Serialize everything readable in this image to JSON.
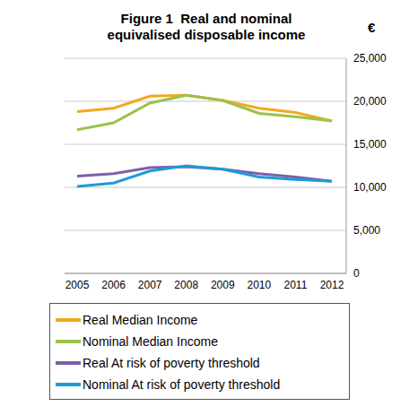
{
  "chart_data": {
    "type": "line",
    "title": "Figure 1  Real and nominal equivalised disposable income",
    "y_label": "€",
    "categories": [
      "2005",
      "2006",
      "2007",
      "2008",
      "2009",
      "2010",
      "2011",
      "2012"
    ],
    "series": [
      {
        "name": "Real Median Income",
        "color": "#F4A81E",
        "values": [
          18800,
          19200,
          20600,
          20700,
          20100,
          19200,
          18700,
          17700
        ]
      },
      {
        "name": "Nominal Median Income",
        "color": "#9BC24A",
        "values": [
          16700,
          17500,
          19800,
          20700,
          20100,
          18600,
          18200,
          17700
        ]
      },
      {
        "name": "Real At risk of poverty threshold",
        "color": "#7E5FA8",
        "values": [
          11300,
          11600,
          12300,
          12400,
          12100,
          11600,
          11200,
          10700
        ]
      },
      {
        "name": "Nominal At risk of poverty threshold",
        "color": "#1E9BD7",
        "values": [
          10100,
          10500,
          11900,
          12500,
          12100,
          11200,
          10900,
          10700
        ]
      }
    ],
    "ylim": [
      0,
      25000
    ],
    "yticks": [
      0,
      {
        "value": 5000,
        "label": "5,000"
      },
      {
        "value": 10000,
        "label": "10,000"
      },
      {
        "value": 15000,
        "label": "15,000"
      },
      {
        "value": 20000,
        "label": "20,000"
      },
      {
        "value": 25000,
        "label": "25,000"
      }
    ],
    "grid": true,
    "legend": "bottom"
  }
}
